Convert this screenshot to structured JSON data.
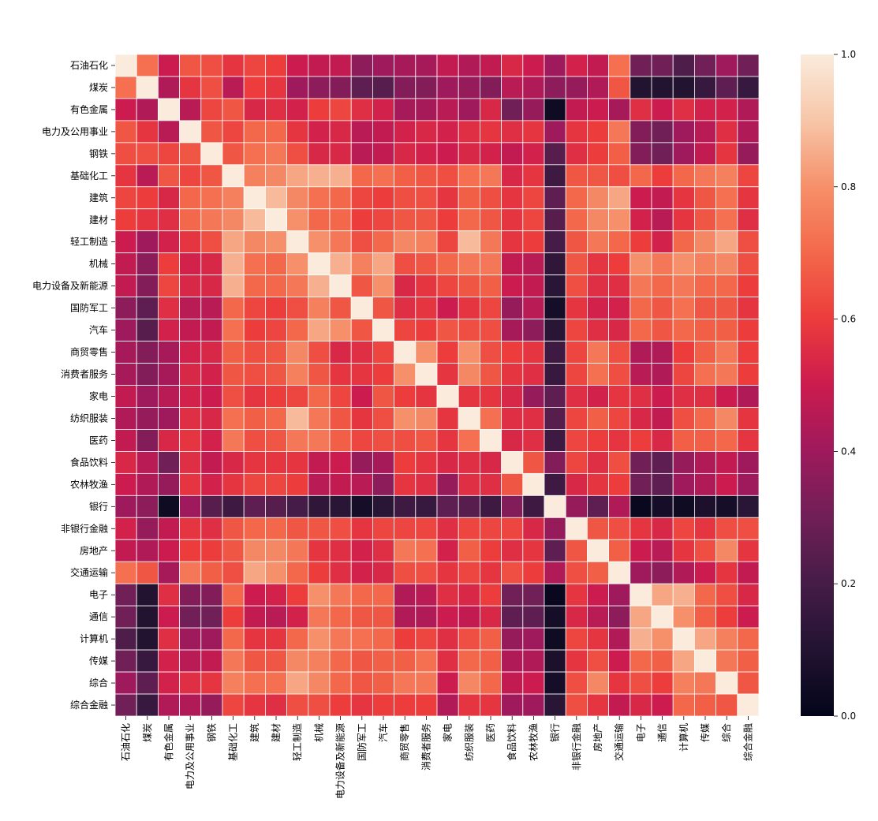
{
  "chart_data": {
    "type": "heatmap",
    "title": "",
    "xlabel": "",
    "ylabel": "",
    "labels": [
      "石油石化",
      "煤炭",
      "有色金属",
      "电力及公用事业",
      "钢铁",
      "基础化工",
      "建筑",
      "建材",
      "轻工制造",
      "机械",
      "电力设备及新能源",
      "国防军工",
      "汽车",
      "商贸零售",
      "消费者服务",
      "家电",
      "纺织服装",
      "医药",
      "食品饮料",
      "农林牧渔",
      "银行",
      "非银行金融",
      "房地产",
      "交通运输",
      "电子",
      "通信",
      "计算机",
      "传媒",
      "综合",
      "综合金融"
    ],
    "matrix": [
      [
        1.0,
        0.72,
        0.5,
        0.66,
        0.64,
        0.58,
        0.62,
        0.6,
        0.5,
        0.48,
        0.48,
        0.36,
        0.4,
        0.42,
        0.42,
        0.48,
        0.44,
        0.48,
        0.54,
        0.5,
        0.4,
        0.52,
        0.48,
        0.72,
        0.3,
        0.3,
        0.22,
        0.3,
        0.4,
        0.3
      ],
      [
        0.72,
        1.0,
        0.44,
        0.58,
        0.64,
        0.46,
        0.6,
        0.58,
        0.4,
        0.36,
        0.34,
        0.26,
        0.24,
        0.34,
        0.34,
        0.4,
        0.38,
        0.34,
        0.46,
        0.44,
        0.36,
        0.38,
        0.44,
        0.66,
        0.1,
        0.1,
        0.1,
        0.16,
        0.26,
        0.16
      ],
      [
        0.5,
        0.44,
        1.0,
        0.46,
        0.62,
        0.66,
        0.54,
        0.56,
        0.52,
        0.6,
        0.62,
        0.56,
        0.52,
        0.42,
        0.42,
        0.46,
        0.4,
        0.54,
        0.3,
        0.38,
        0.04,
        0.48,
        0.5,
        0.42,
        0.56,
        0.5,
        0.56,
        0.52,
        0.52,
        0.44
      ],
      [
        0.66,
        0.58,
        0.46,
        1.0,
        0.66,
        0.62,
        0.7,
        0.7,
        0.58,
        0.52,
        0.54,
        0.46,
        0.48,
        0.52,
        0.54,
        0.52,
        0.56,
        0.58,
        0.56,
        0.58,
        0.4,
        0.58,
        0.6,
        0.74,
        0.34,
        0.3,
        0.4,
        0.46,
        0.56,
        0.44
      ],
      [
        0.64,
        0.64,
        0.62,
        0.66,
        1.0,
        0.66,
        0.72,
        0.74,
        0.64,
        0.54,
        0.54,
        0.46,
        0.48,
        0.54,
        0.52,
        0.5,
        0.54,
        0.52,
        0.48,
        0.52,
        0.24,
        0.56,
        0.6,
        0.68,
        0.34,
        0.3,
        0.4,
        0.48,
        0.58,
        0.38
      ],
      [
        0.58,
        0.46,
        0.66,
        0.62,
        0.66,
        1.0,
        0.76,
        0.78,
        0.84,
        0.86,
        0.86,
        0.7,
        0.72,
        0.68,
        0.66,
        0.64,
        0.72,
        0.74,
        0.54,
        0.58,
        0.18,
        0.66,
        0.66,
        0.64,
        0.7,
        0.6,
        0.7,
        0.74,
        0.76,
        0.62
      ],
      [
        0.62,
        0.6,
        0.54,
        0.7,
        0.72,
        0.76,
        1.0,
        0.88,
        0.78,
        0.72,
        0.7,
        0.62,
        0.6,
        0.64,
        0.64,
        0.58,
        0.68,
        0.64,
        0.58,
        0.62,
        0.26,
        0.7,
        0.78,
        0.84,
        0.5,
        0.48,
        0.58,
        0.66,
        0.72,
        0.58
      ],
      [
        0.6,
        0.58,
        0.56,
        0.7,
        0.74,
        0.78,
        0.88,
        1.0,
        0.8,
        0.7,
        0.7,
        0.6,
        0.62,
        0.66,
        0.66,
        0.6,
        0.7,
        0.66,
        0.58,
        0.62,
        0.24,
        0.7,
        0.78,
        0.8,
        0.52,
        0.46,
        0.58,
        0.66,
        0.72,
        0.56
      ],
      [
        0.5,
        0.4,
        0.52,
        0.58,
        0.64,
        0.84,
        0.78,
        0.8,
        1.0,
        0.8,
        0.74,
        0.64,
        0.7,
        0.78,
        0.76,
        0.62,
        0.88,
        0.74,
        0.58,
        0.6,
        0.2,
        0.66,
        0.74,
        0.7,
        0.6,
        0.52,
        0.7,
        0.78,
        0.84,
        0.64
      ],
      [
        0.48,
        0.36,
        0.6,
        0.52,
        0.54,
        0.86,
        0.72,
        0.7,
        0.8,
        1.0,
        0.86,
        0.76,
        0.84,
        0.64,
        0.66,
        0.7,
        0.74,
        0.74,
        0.48,
        0.46,
        0.14,
        0.66,
        0.58,
        0.6,
        0.8,
        0.74,
        0.8,
        0.76,
        0.78,
        0.64
      ],
      [
        0.48,
        0.34,
        0.62,
        0.54,
        0.54,
        0.86,
        0.7,
        0.7,
        0.74,
        0.86,
        1.0,
        0.66,
        0.8,
        0.54,
        0.58,
        0.62,
        0.66,
        0.68,
        0.5,
        0.48,
        0.12,
        0.64,
        0.56,
        0.56,
        0.74,
        0.7,
        0.74,
        0.7,
        0.7,
        0.6
      ],
      [
        0.36,
        0.26,
        0.56,
        0.46,
        0.46,
        0.7,
        0.62,
        0.6,
        0.64,
        0.76,
        0.66,
        1.0,
        0.66,
        0.56,
        0.58,
        0.5,
        0.58,
        0.62,
        0.38,
        0.46,
        0.06,
        0.58,
        0.52,
        0.52,
        0.7,
        0.66,
        0.72,
        0.66,
        0.66,
        0.58
      ],
      [
        0.4,
        0.24,
        0.52,
        0.48,
        0.48,
        0.72,
        0.6,
        0.62,
        0.7,
        0.84,
        0.8,
        0.66,
        1.0,
        0.62,
        0.6,
        0.66,
        0.64,
        0.64,
        0.42,
        0.36,
        0.12,
        0.62,
        0.56,
        0.54,
        0.7,
        0.66,
        0.7,
        0.68,
        0.68,
        0.6
      ],
      [
        0.42,
        0.34,
        0.42,
        0.52,
        0.54,
        0.68,
        0.64,
        0.66,
        0.78,
        0.64,
        0.54,
        0.56,
        0.62,
        1.0,
        0.8,
        0.6,
        0.8,
        0.64,
        0.6,
        0.58,
        0.18,
        0.62,
        0.74,
        0.64,
        0.44,
        0.44,
        0.6,
        0.68,
        0.74,
        0.6
      ],
      [
        0.42,
        0.34,
        0.42,
        0.54,
        0.52,
        0.66,
        0.64,
        0.66,
        0.76,
        0.66,
        0.58,
        0.58,
        0.6,
        0.8,
        1.0,
        0.58,
        0.78,
        0.66,
        0.58,
        0.56,
        0.16,
        0.62,
        0.72,
        0.64,
        0.46,
        0.44,
        0.62,
        0.72,
        0.74,
        0.6
      ],
      [
        0.48,
        0.4,
        0.46,
        0.52,
        0.5,
        0.64,
        0.58,
        0.6,
        0.62,
        0.7,
        0.62,
        0.5,
        0.66,
        0.6,
        0.58,
        1.0,
        0.58,
        0.58,
        0.54,
        0.38,
        0.26,
        0.56,
        0.52,
        0.58,
        0.56,
        0.5,
        0.56,
        0.56,
        0.5,
        0.44
      ],
      [
        0.44,
        0.38,
        0.4,
        0.56,
        0.54,
        0.72,
        0.68,
        0.7,
        0.88,
        0.74,
        0.66,
        0.58,
        0.64,
        0.8,
        0.78,
        0.58,
        1.0,
        0.72,
        0.56,
        0.56,
        0.24,
        0.62,
        0.68,
        0.62,
        0.54,
        0.48,
        0.64,
        0.7,
        0.78,
        0.58
      ],
      [
        0.48,
        0.34,
        0.54,
        0.58,
        0.52,
        0.74,
        0.64,
        0.66,
        0.74,
        0.74,
        0.68,
        0.62,
        0.64,
        0.64,
        0.66,
        0.58,
        0.72,
        1.0,
        0.54,
        0.56,
        0.18,
        0.62,
        0.6,
        0.58,
        0.6,
        0.54,
        0.68,
        0.68,
        0.7,
        0.58
      ],
      [
        0.54,
        0.46,
        0.3,
        0.56,
        0.48,
        0.54,
        0.58,
        0.58,
        0.58,
        0.48,
        0.5,
        0.38,
        0.42,
        0.6,
        0.58,
        0.54,
        0.56,
        0.54,
        1.0,
        0.66,
        0.34,
        0.62,
        0.56,
        0.64,
        0.3,
        0.26,
        0.38,
        0.44,
        0.48,
        0.4
      ],
      [
        0.5,
        0.44,
        0.38,
        0.58,
        0.52,
        0.58,
        0.62,
        0.62,
        0.6,
        0.46,
        0.48,
        0.46,
        0.36,
        0.58,
        0.56,
        0.38,
        0.56,
        0.56,
        0.66,
        1.0,
        0.18,
        0.54,
        0.58,
        0.6,
        0.3,
        0.26,
        0.4,
        0.44,
        0.5,
        0.4
      ],
      [
        0.4,
        0.36,
        0.04,
        0.4,
        0.24,
        0.18,
        0.26,
        0.24,
        0.2,
        0.14,
        0.12,
        0.06,
        0.12,
        0.18,
        0.16,
        0.26,
        0.24,
        0.18,
        0.34,
        0.18,
        1.0,
        0.38,
        0.26,
        0.44,
        0.02,
        0.06,
        0.04,
        0.08,
        0.06,
        0.12
      ],
      [
        0.52,
        0.38,
        0.48,
        0.58,
        0.56,
        0.66,
        0.7,
        0.7,
        0.66,
        0.66,
        0.64,
        0.58,
        0.62,
        0.62,
        0.62,
        0.56,
        0.62,
        0.62,
        0.62,
        0.54,
        0.38,
        1.0,
        0.66,
        0.64,
        0.58,
        0.54,
        0.62,
        0.58,
        0.64,
        0.64
      ],
      [
        0.48,
        0.44,
        0.5,
        0.6,
        0.6,
        0.66,
        0.78,
        0.78,
        0.74,
        0.58,
        0.56,
        0.52,
        0.56,
        0.74,
        0.72,
        0.52,
        0.68,
        0.6,
        0.56,
        0.58,
        0.26,
        0.66,
        1.0,
        0.68,
        0.5,
        0.46,
        0.58,
        0.64,
        0.78,
        0.58
      ],
      [
        0.72,
        0.66,
        0.42,
        0.74,
        0.68,
        0.64,
        0.84,
        0.8,
        0.7,
        0.6,
        0.56,
        0.52,
        0.54,
        0.64,
        0.64,
        0.58,
        0.62,
        0.58,
        0.64,
        0.6,
        0.44,
        0.64,
        0.68,
        1.0,
        0.4,
        0.36,
        0.44,
        0.5,
        0.58,
        0.48
      ],
      [
        0.3,
        0.1,
        0.56,
        0.34,
        0.34,
        0.7,
        0.5,
        0.52,
        0.6,
        0.8,
        0.74,
        0.7,
        0.7,
        0.44,
        0.46,
        0.56,
        0.54,
        0.6,
        0.3,
        0.3,
        0.02,
        0.58,
        0.5,
        0.4,
        1.0,
        0.84,
        0.86,
        0.7,
        0.64,
        0.54
      ],
      [
        0.3,
        0.1,
        0.5,
        0.3,
        0.3,
        0.6,
        0.48,
        0.46,
        0.52,
        0.74,
        0.7,
        0.66,
        0.66,
        0.44,
        0.44,
        0.5,
        0.48,
        0.54,
        0.26,
        0.26,
        0.06,
        0.54,
        0.46,
        0.36,
        0.84,
        1.0,
        0.8,
        0.68,
        0.6,
        0.5
      ],
      [
        0.22,
        0.1,
        0.56,
        0.4,
        0.4,
        0.7,
        0.58,
        0.58,
        0.7,
        0.8,
        0.74,
        0.72,
        0.7,
        0.6,
        0.62,
        0.56,
        0.64,
        0.68,
        0.38,
        0.4,
        0.04,
        0.62,
        0.58,
        0.44,
        0.86,
        0.8,
        1.0,
        0.84,
        0.76,
        0.7
      ],
      [
        0.3,
        0.16,
        0.52,
        0.46,
        0.48,
        0.74,
        0.66,
        0.66,
        0.78,
        0.76,
        0.7,
        0.66,
        0.68,
        0.68,
        0.72,
        0.56,
        0.7,
        0.68,
        0.44,
        0.44,
        0.08,
        0.58,
        0.64,
        0.5,
        0.7,
        0.68,
        0.84,
        1.0,
        0.74,
        0.68
      ],
      [
        0.4,
        0.26,
        0.52,
        0.56,
        0.58,
        0.76,
        0.72,
        0.72,
        0.84,
        0.78,
        0.7,
        0.66,
        0.68,
        0.74,
        0.74,
        0.5,
        0.78,
        0.7,
        0.48,
        0.5,
        0.06,
        0.64,
        0.78,
        0.58,
        0.64,
        0.6,
        0.76,
        0.74,
        1.0,
        0.66
      ],
      [
        0.3,
        0.16,
        0.44,
        0.44,
        0.38,
        0.62,
        0.58,
        0.56,
        0.64,
        0.64,
        0.6,
        0.58,
        0.6,
        0.6,
        0.6,
        0.44,
        0.58,
        0.58,
        0.4,
        0.4,
        0.12,
        0.64,
        0.58,
        0.48,
        0.54,
        0.5,
        0.7,
        0.68,
        0.66,
        1.0
      ]
    ],
    "colorbar": {
      "min": 0.0,
      "max": 1.0,
      "ticks": [
        "0.0",
        "0.2",
        "0.4",
        "0.6",
        "0.8",
        "1.0"
      ],
      "colormap": "rocket"
    },
    "grid": true,
    "legend": "colorbar-right",
    "colors": {
      "low": "#03051a",
      "mid_low": "#701f57",
      "mid": "#e13342",
      "mid_high": "#f6b48f",
      "high": "#faebdd",
      "cell_border": "#ffffff"
    }
  }
}
